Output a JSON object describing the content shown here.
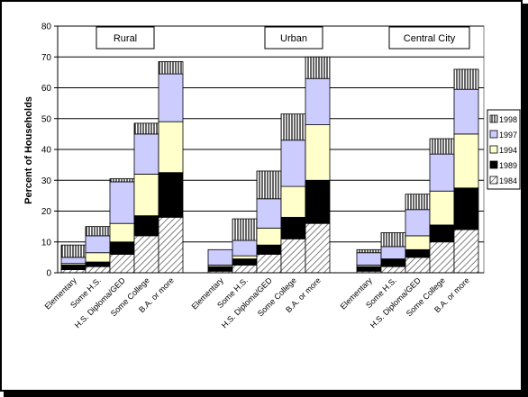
{
  "chart_data": {
    "type": "bar",
    "stacked": true,
    "ylabel": "Percent of Households",
    "ylim": [
      0,
      80
    ],
    "yticks": [
      0,
      10,
      20,
      30,
      40,
      50,
      60,
      70,
      80
    ],
    "grid": true,
    "legend_position": "right",
    "groups": [
      {
        "label": "Rural",
        "categories": [
          "Elementary",
          "Some H.S.",
          "H.S. Diploma/GED",
          "Some College",
          "B.A. or more"
        ],
        "series": {
          "1984": [
            1,
            2,
            6,
            12,
            18
          ],
          "1989": [
            1.5,
            1.5,
            4,
            6.5,
            14.5
          ],
          "1994": [
            0.5,
            3,
            6,
            13.5,
            16.5
          ],
          "1997": [
            2,
            5.5,
            13.5,
            13,
            15.5
          ],
          "1998": [
            4,
            3,
            1,
            3.5,
            4
          ]
        }
      },
      {
        "label": "Urban",
        "categories": [
          "Elementary",
          "Some H.S.",
          "H.S. Diploma/GED",
          "Some College",
          "B.A. or more"
        ],
        "series": {
          "1984": [
            0.5,
            2.5,
            6,
            11,
            16
          ],
          "1989": [
            1.5,
            2,
            3,
            7,
            14
          ],
          "1994": [
            0.5,
            1,
            5.5,
            10,
            18
          ],
          "1997": [
            5,
            5,
            9.5,
            15,
            15
          ],
          "1998": [
            0,
            7,
            9,
            8.5,
            7
          ]
        }
      },
      {
        "label": "Central City",
        "categories": [
          "Elementary",
          "Some H.S.",
          "H.S. Diploma/GED",
          "Some College",
          "B.A. or more"
        ],
        "series": {
          "1984": [
            0.5,
            2,
            5,
            10,
            14
          ],
          "1989": [
            1.5,
            2.5,
            2.5,
            5.5,
            13.5
          ],
          "1994": [
            0.5,
            0,
            4.5,
            11,
            17.5
          ],
          "1997": [
            4,
            4,
            8.5,
            12,
            14.5
          ],
          "1998": [
            1,
            4.5,
            5,
            5,
            6.5
          ]
        }
      }
    ],
    "legend": [
      "1998",
      "1997",
      "1994",
      "1989",
      "1984"
    ],
    "colors": {
      "1984": "hatch-diagonal",
      "1989": "#000000",
      "1994": "#ffffcc",
      "1997": "#ccccff",
      "1998": "hatch-vertical"
    }
  }
}
